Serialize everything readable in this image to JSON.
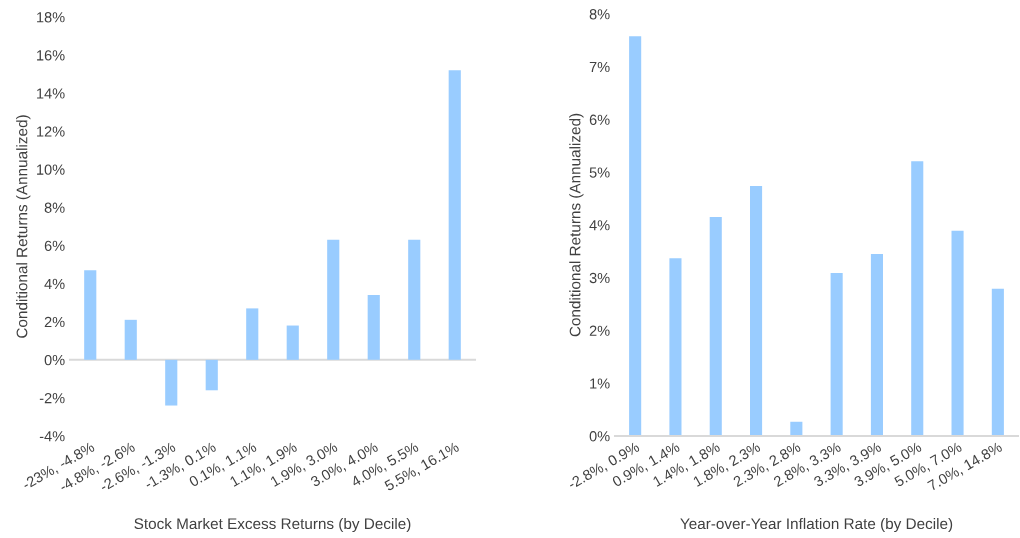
{
  "chart_data": [
    {
      "type": "bar",
      "xlabel": "Stock Market Excess Returns (by Decile)",
      "ylabel": "Conditional Returns (Annualized)",
      "categories": [
        "-23%, -4.8%",
        "-4.8%, -2.6%",
        "-2.6%, -1.3%",
        "-1.3%, 0.1%",
        "0.1%, 1.1%",
        "1.1%, 1.9%",
        "1.9%, 3.0%",
        "3.0%, 4.0%",
        "4.0%, 5.5%",
        "5.5%, 16.1%"
      ],
      "values": [
        4.7,
        2.1,
        -2.4,
        -1.6,
        2.7,
        1.8,
        6.3,
        3.4,
        6.3,
        15.2
      ],
      "color": "#99ccff",
      "ylim": [
        -4,
        18
      ],
      "yticks": [
        {
          "value": -4,
          "label": "-4%"
        },
        {
          "value": -2,
          "label": "-2%"
        },
        {
          "value": 0,
          "label": "0%"
        },
        {
          "value": 2,
          "label": "2%"
        },
        {
          "value": 4,
          "label": "4%"
        },
        {
          "value": 6,
          "label": "6%"
        },
        {
          "value": 8,
          "label": "8%"
        },
        {
          "value": 10,
          "label": "10%"
        },
        {
          "value": 12,
          "label": "12%"
        },
        {
          "value": 14,
          "label": "14%"
        },
        {
          "value": 16,
          "label": "16%"
        },
        {
          "value": 18,
          "label": "18%"
        }
      ],
      "ref_lines": [
        {
          "axis": "y",
          "value": 0,
          "color": "#d9d9d9"
        }
      ]
    },
    {
      "type": "bar",
      "xlabel": "Year-over-Year Inflation Rate (by Decile)",
      "ylabel": "Conditional Returns (Annualized)",
      "categories": [
        "-2.8%, 0.9%",
        "0.9%, 1.4%",
        "1.4%, 1.8%",
        "1.8%, 2.3%",
        "2.3%, 2.8%",
        "2.8%, 3.3%",
        "3.3%, 3.9%",
        "3.9%, 5.0%",
        "5.0%, 7.0%",
        "7.0%, 14.8%"
      ],
      "values": [
        7.58,
        3.37,
        4.15,
        4.74,
        0.27,
        3.09,
        3.45,
        5.21,
        3.89,
        2.79
      ],
      "color": "#99ccff",
      "ylim": [
        0,
        8
      ],
      "yticks": [
        {
          "value": 0,
          "label": "0%"
        },
        {
          "value": 1,
          "label": "1%"
        },
        {
          "value": 2,
          "label": "2%"
        },
        {
          "value": 3,
          "label": "3%"
        },
        {
          "value": 4,
          "label": "4%"
        },
        {
          "value": 5,
          "label": "5%"
        },
        {
          "value": 6,
          "label": "6%"
        },
        {
          "value": 7,
          "label": "7%"
        },
        {
          "value": 8,
          "label": "8%"
        }
      ]
    }
  ]
}
